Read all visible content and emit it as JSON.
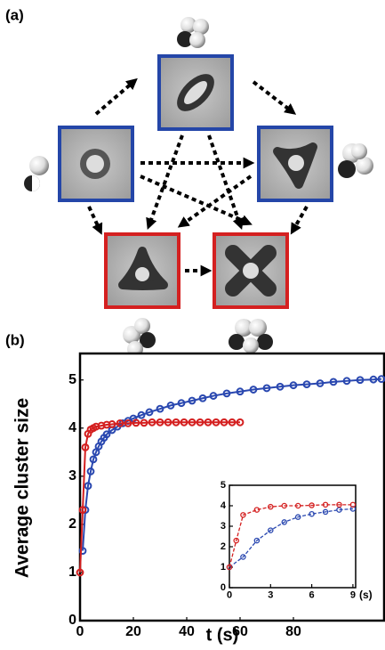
{
  "panel_a": {
    "label": "(a)"
  },
  "chart_data": [
    {
      "type": "line",
      "panel_label": "(b)",
      "ylabel": "Average cluster size",
      "xlabel": "t (s)",
      "xlim": [
        0,
        114
      ],
      "xticks": [
        0,
        20,
        40,
        60,
        80
      ],
      "ylim": [
        0,
        5.55
      ],
      "yticks": [
        0,
        1,
        2,
        3,
        4,
        5
      ],
      "series": [
        {
          "color": "#2a48b0",
          "x": [
            1,
            2,
            3,
            4,
            5,
            6,
            7,
            8,
            9,
            10,
            12,
            14,
            16,
            18,
            20,
            23,
            26,
            30,
            34,
            38,
            42,
            46,
            50,
            55,
            60,
            65,
            70,
            75,
            80,
            85,
            90,
            95,
            100,
            105,
            110,
            113
          ],
          "values": [
            1.45,
            2.3,
            2.8,
            3.1,
            3.35,
            3.5,
            3.62,
            3.72,
            3.8,
            3.87,
            3.96,
            4.03,
            4.1,
            4.15,
            4.2,
            4.27,
            4.33,
            4.4,
            4.47,
            4.52,
            4.57,
            4.62,
            4.67,
            4.72,
            4.76,
            4.8,
            4.83,
            4.86,
            4.89,
            4.91,
            4.93,
            4.96,
            4.98,
            5.0,
            5.01,
            5.02
          ]
        },
        {
          "color": "#d42020",
          "x": [
            0,
            1,
            2,
            3,
            4,
            5,
            6,
            8,
            10,
            12,
            15,
            18,
            21,
            24,
            27,
            30,
            33,
            36,
            39,
            42,
            45,
            48,
            51,
            54,
            57,
            60
          ],
          "values": [
            1,
            2.3,
            3.6,
            3.88,
            3.97,
            4.0,
            4.03,
            4.05,
            4.07,
            4.08,
            4.1,
            4.1,
            4.11,
            4.11,
            4.12,
            4.12,
            4.12,
            4.12,
            4.12,
            4.12,
            4.12,
            4.12,
            4.12,
            4.12,
            4.12,
            4.12
          ]
        }
      ]
    },
    {
      "type": "line",
      "xlabel": "(s)",
      "xlim": [
        0,
        9.2
      ],
      "xticks": [
        0,
        3,
        6,
        9
      ],
      "ylim": [
        0,
        5
      ],
      "yticks": [
        0,
        1,
        2,
        3,
        4,
        5
      ],
      "series": [
        {
          "color": "#2a48b0",
          "x": [
            0,
            1,
            2,
            3,
            4,
            5,
            6,
            7,
            8,
            9
          ],
          "values": [
            1,
            1.5,
            2.3,
            2.8,
            3.2,
            3.45,
            3.6,
            3.7,
            3.8,
            3.85
          ]
        },
        {
          "color": "#d42020",
          "x": [
            0,
            0.5,
            1,
            2,
            3,
            4,
            5,
            6,
            7,
            8,
            9
          ],
          "values": [
            1,
            2.3,
            3.55,
            3.8,
            3.95,
            4.0,
            4.0,
            4.02,
            4.05,
            4.05,
            4.05
          ]
        }
      ]
    }
  ]
}
